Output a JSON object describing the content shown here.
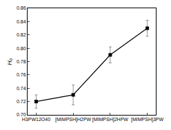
{
  "chart_data": {
    "type": "line",
    "y_label": "H₀",
    "categories": [
      "H3PW12O40",
      "[MIMPSH]H2PW",
      "[MIMPSH]2HPW",
      "[MIMPSH]3PW"
    ],
    "values": [
      0.72,
      0.73,
      0.79,
      0.83
    ],
    "errors": [
      0.01,
      0.015,
      0.012,
      0.012
    ],
    "color": "#000000",
    "marker": "square",
    "ylim": [
      0.7,
      0.86
    ],
    "yticks": [
      {
        "value": 0.7,
        "label": "0.70"
      },
      0.72,
      0.74,
      0.76,
      0.78,
      {
        "value": 0.8,
        "label": "0.80"
      },
      0.82,
      0.84,
      0.86
    ],
    "grid": false
  }
}
